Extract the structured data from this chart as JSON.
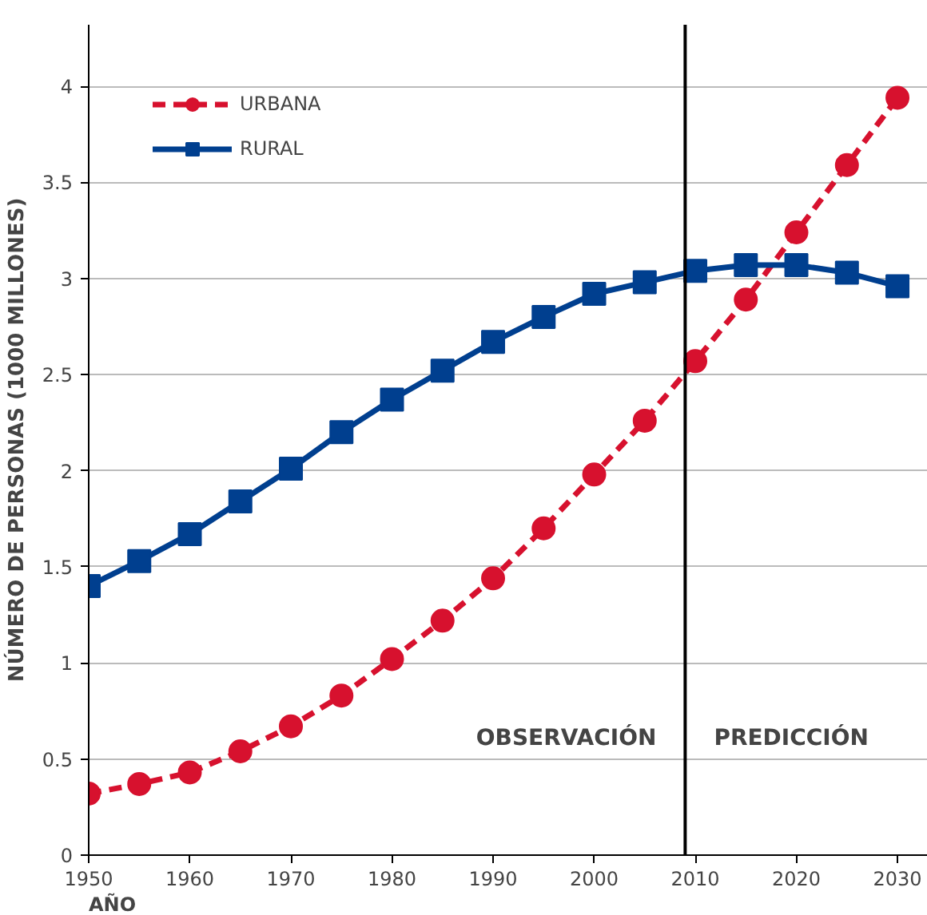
{
  "chart_data": {
    "type": "line",
    "xlabel": "AÑO",
    "ylabel": "NÚMERO DE PERSONAS (1000 MILLONES)",
    "x": [
      1950,
      1955,
      1960,
      1965,
      1970,
      1975,
      1980,
      1985,
      1990,
      1995,
      2000,
      2005,
      2010,
      2015,
      2020,
      2025,
      2030
    ],
    "series": [
      {
        "name": "URBANA",
        "color": "#d7112e",
        "marker": "circle",
        "line_style": "dashed",
        "values": [
          0.32,
          0.37,
          0.43,
          0.54,
          0.67,
          0.83,
          1.02,
          1.22,
          1.44,
          1.7,
          1.98,
          2.26,
          2.57,
          2.89,
          3.24,
          3.59,
          3.94
        ]
      },
      {
        "name": "RURAL",
        "color": "#003f8f",
        "marker": "square",
        "line_style": "solid",
        "values": [
          1.4,
          1.53,
          1.67,
          1.84,
          2.01,
          2.2,
          2.37,
          2.52,
          2.67,
          2.8,
          2.92,
          2.98,
          3.04,
          3.07,
          3.07,
          3.03,
          2.96
        ]
      }
    ],
    "xlim": [
      1950,
      2033
    ],
    "xticks": [
      1950,
      1960,
      1970,
      1980,
      1990,
      2000,
      2010,
      2020,
      2030
    ],
    "ylim": [
      0,
      4.32
    ],
    "yticks": [
      0,
      0.5,
      1,
      1.5,
      2,
      2.5,
      3,
      3.5,
      4
    ],
    "ref_lines": [
      {
        "axis": "x",
        "value": 2009,
        "color": "#000000"
      }
    ],
    "annotations": [
      "OBSERVACIÓN",
      "PREDICCIÓN"
    ],
    "grid": "y",
    "legend": "top left"
  }
}
